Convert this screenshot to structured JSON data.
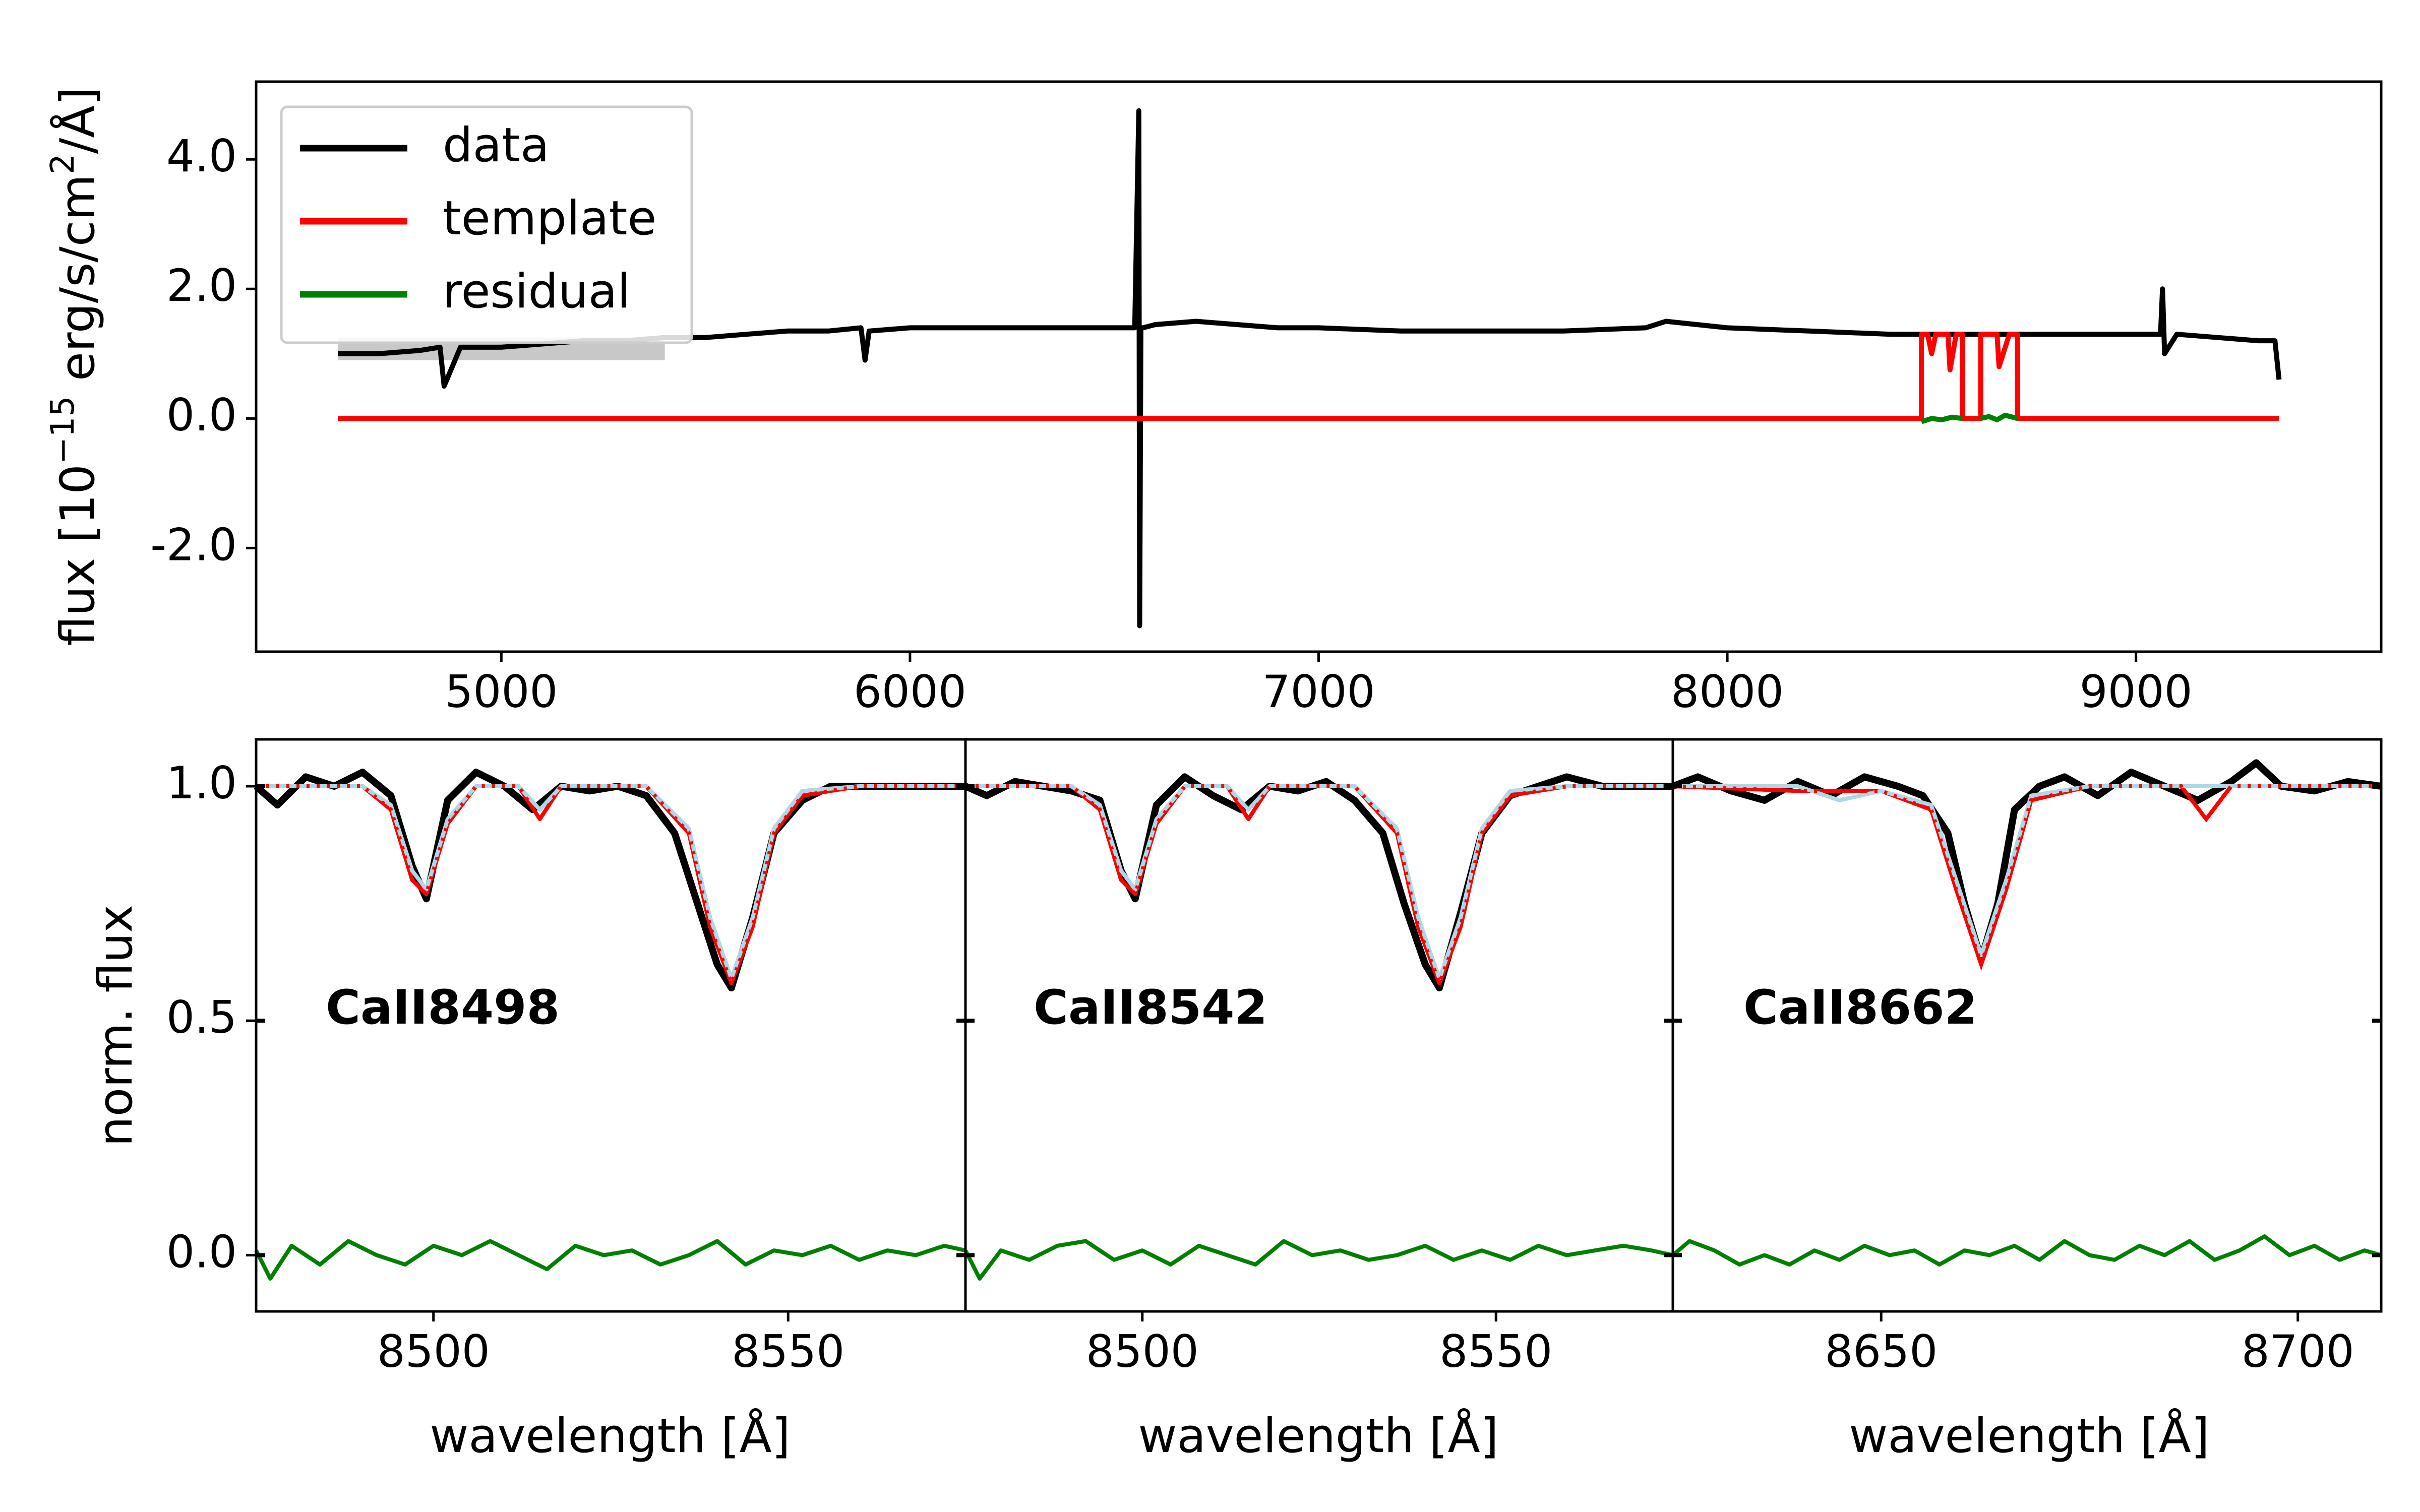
{
  "chart_data": [
    {
      "type": "line",
      "id": "full-spectrum",
      "ylabel": "flux [10^-15 erg/s/cm^2/Å]",
      "ylabel_parts": {
        "pre": "flux [10",
        "exp": "−15",
        "mid": " erg/s/cm",
        "exp2": "2",
        "post": "/Å]"
      },
      "xlim": [
        4400,
        9600
      ],
      "ylim": [
        -3.6,
        5.2
      ],
      "xticks": [
        5000,
        6000,
        7000,
        8000,
        9000
      ],
      "xtick_labels": [
        "5000",
        "6000",
        "7000",
        "8000",
        "9000"
      ],
      "yticks": [
        -2.0,
        0.0,
        2.0,
        4.0
      ],
      "ytick_labels": [
        "-2.0",
        "0.0",
        "2.0",
        "4.0"
      ],
      "legend": {
        "position": "top-left",
        "entries": [
          {
            "label": "data",
            "color": "#000000"
          },
          {
            "label": "template",
            "color": "#ff0000"
          },
          {
            "label": "residual",
            "color": "#008000"
          }
        ]
      },
      "series": [
        {
          "name": "data",
          "color": "#000000",
          "x": [
            4600,
            4700,
            4800,
            4850,
            4860,
            4900,
            5000,
            5100,
            5200,
            5300,
            5400,
            5500,
            5600,
            5700,
            5800,
            5880,
            5890,
            5900,
            6000,
            6100,
            6200,
            6300,
            6400,
            6500,
            6550,
            6560,
            6562,
            6565,
            6570,
            6600,
            6700,
            6800,
            6900,
            7000,
            7200,
            7400,
            7600,
            7800,
            7850,
            8000,
            8200,
            8400,
            8500,
            8600,
            8700,
            8800,
            8900,
            9000,
            9060,
            9065,
            9070,
            9100,
            9200,
            9300,
            9340,
            9350
          ],
          "y": [
            1.0,
            1.0,
            1.05,
            1.1,
            0.5,
            1.1,
            1.1,
            1.15,
            1.2,
            1.2,
            1.25,
            1.25,
            1.3,
            1.35,
            1.35,
            1.4,
            0.9,
            1.35,
            1.4,
            1.4,
            1.4,
            1.4,
            1.4,
            1.4,
            1.4,
            4.75,
            -3.2,
            1.4,
            1.4,
            1.45,
            1.5,
            1.45,
            1.4,
            1.4,
            1.35,
            1.35,
            1.35,
            1.4,
            1.5,
            1.4,
            1.35,
            1.3,
            1.3,
            1.3,
            1.3,
            1.3,
            1.3,
            1.3,
            1.3,
            2.0,
            1.0,
            1.3,
            1.25,
            1.2,
            1.2,
            0.6
          ],
          "shaded_region": {
            "x": [
              4600,
              5400
            ],
            "color": "#c8c8c8"
          }
        },
        {
          "name": "template",
          "color": "#ff0000",
          "x": [
            4600,
            8475,
            8475,
            8490,
            8500,
            8510,
            8540,
            8545,
            8560,
            8575,
            8575,
            8620,
            8620,
            8640,
            8660,
            8665,
            8690,
            8710,
            8710,
            9350
          ],
          "y": [
            0.0,
            0.0,
            1.3,
            1.3,
            1.0,
            1.3,
            1.3,
            0.75,
            1.3,
            1.3,
            0.0,
            0.0,
            1.3,
            1.3,
            1.3,
            0.8,
            1.3,
            1.3,
            0.0,
            0.0
          ]
        },
        {
          "name": "residual",
          "color": "#008000",
          "segments": [
            {
              "x": [
                8475,
                8500,
                8525,
                8550,
                8575
              ],
              "y": [
                -0.05,
                0.0,
                -0.02,
                0.02,
                0.0
              ]
            },
            {
              "x": [
                8620,
                8640,
                8660,
                8680,
                8710
              ],
              "y": [
                0.0,
                0.03,
                -0.02,
                0.05,
                0.0
              ]
            }
          ]
        }
      ]
    },
    {
      "type": "line",
      "id": "CaII8498",
      "label": "CaII8498",
      "xlabel": "wavelength [Å]",
      "ylabel": "norm. flux",
      "xlim": [
        8475,
        8575
      ],
      "ylim": [
        -0.12,
        1.1
      ],
      "xticks": [
        8500,
        8550
      ],
      "xtick_labels": [
        "8500",
        "8550"
      ],
      "yticks": [
        0.0,
        0.5,
        1.0
      ],
      "ytick_labels": [
        "0.0",
        "0.5",
        "1.0"
      ],
      "series": [
        {
          "name": "data",
          "color": "#000000",
          "x": [
            8475,
            8478,
            8482,
            8486,
            8490,
            8494,
            8497,
            8499,
            8502,
            8506,
            8510,
            8514,
            8518,
            8522,
            8526,
            8530,
            8534,
            8537,
            8540,
            8542,
            8545,
            8548,
            8552,
            8556,
            8560,
            8565,
            8570,
            8575
          ],
          "y": [
            1.0,
            0.96,
            1.02,
            1.0,
            1.03,
            0.98,
            0.83,
            0.76,
            0.97,
            1.03,
            1.0,
            0.95,
            1.0,
            0.99,
            1.0,
            0.98,
            0.9,
            0.76,
            0.62,
            0.57,
            0.72,
            0.9,
            0.97,
            1.0,
            1.0,
            1.0,
            1.0,
            1.0
          ]
        },
        {
          "name": "template",
          "color": "#ff0000",
          "x": [
            8475,
            8490,
            8494,
            8497,
            8499,
            8502,
            8506,
            8512,
            8515,
            8518,
            8530,
            8536,
            8539,
            8542,
            8545,
            8548,
            8552,
            8560,
            8575
          ],
          "y": [
            1.0,
            1.0,
            0.95,
            0.8,
            0.77,
            0.92,
            1.0,
            1.0,
            0.93,
            1.0,
            1.0,
            0.9,
            0.7,
            0.58,
            0.7,
            0.9,
            0.98,
            1.0,
            1.0
          ]
        },
        {
          "name": "fit",
          "color": "#add8e6",
          "x": [
            8475,
            8490,
            8494,
            8497,
            8499,
            8502,
            8506,
            8512,
            8515,
            8518,
            8530,
            8536,
            8539,
            8542,
            8545,
            8548,
            8552,
            8560,
            8575
          ],
          "y": [
            1.0,
            1.0,
            0.96,
            0.82,
            0.78,
            0.93,
            1.0,
            1.0,
            0.95,
            1.0,
            1.0,
            0.91,
            0.72,
            0.59,
            0.72,
            0.91,
            0.99,
            1.0,
            1.0
          ]
        },
        {
          "name": "residual",
          "color": "#008000",
          "x": [
            8475,
            8477,
            8480,
            8484,
            8488,
            8492,
            8496,
            8500,
            8504,
            8508,
            8512,
            8516,
            8520,
            8524,
            8528,
            8532,
            8536,
            8540,
            8544,
            8548,
            8552,
            8556,
            8560,
            8564,
            8568,
            8572,
            8575
          ],
          "y": [
            0.01,
            -0.05,
            0.02,
            -0.02,
            0.03,
            0.0,
            -0.02,
            0.02,
            0.0,
            0.03,
            0.0,
            -0.03,
            0.02,
            0.0,
            0.01,
            -0.02,
            0.0,
            0.03,
            -0.02,
            0.01,
            0.0,
            0.02,
            -0.01,
            0.01,
            0.0,
            0.02,
            0.01
          ]
        }
      ]
    },
    {
      "type": "line",
      "id": "CaII8542",
      "label": "CaII8542",
      "xlabel": "wavelength [Å]",
      "xlim": [
        8475,
        8575
      ],
      "ylim": [
        -0.12,
        1.1
      ],
      "xticks": [
        8500,
        8550
      ],
      "xtick_labels": [
        "8500",
        "8550"
      ],
      "series": [
        {
          "name": "data",
          "color": "#000000",
          "x": [
            8475,
            8478,
            8482,
            8486,
            8490,
            8494,
            8497,
            8499,
            8502,
            8506,
            8510,
            8514,
            8518,
            8522,
            8526,
            8530,
            8534,
            8537,
            8540,
            8542,
            8545,
            8548,
            8552,
            8556,
            8560,
            8565,
            8570,
            8575
          ],
          "y": [
            1.0,
            0.98,
            1.01,
            1.0,
            0.99,
            0.97,
            0.82,
            0.76,
            0.96,
            1.02,
            0.98,
            0.95,
            1.0,
            0.99,
            1.01,
            0.97,
            0.9,
            0.75,
            0.62,
            0.57,
            0.73,
            0.9,
            0.98,
            1.0,
            1.02,
            1.0,
            1.0,
            1.0
          ]
        },
        {
          "name": "template",
          "color": "#ff0000",
          "x": [
            8475,
            8490,
            8494,
            8497,
            8499,
            8502,
            8506,
            8512,
            8515,
            8518,
            8530,
            8536,
            8539,
            8542,
            8545,
            8548,
            8552,
            8560,
            8575
          ],
          "y": [
            1.0,
            1.0,
            0.95,
            0.8,
            0.77,
            0.92,
            1.0,
            1.0,
            0.93,
            1.0,
            1.0,
            0.9,
            0.7,
            0.58,
            0.7,
            0.9,
            0.98,
            1.0,
            1.0
          ]
        },
        {
          "name": "fit",
          "color": "#add8e6",
          "x": [
            8475,
            8490,
            8494,
            8497,
            8499,
            8502,
            8506,
            8512,
            8515,
            8518,
            8530,
            8536,
            8539,
            8542,
            8545,
            8548,
            8552,
            8560,
            8575
          ],
          "y": [
            1.0,
            1.0,
            0.96,
            0.82,
            0.78,
            0.93,
            1.0,
            1.0,
            0.95,
            1.0,
            1.0,
            0.91,
            0.72,
            0.59,
            0.72,
            0.91,
            0.99,
            1.0,
            1.0
          ]
        },
        {
          "name": "residual",
          "color": "#008000",
          "x": [
            8475,
            8477,
            8480,
            8484,
            8488,
            8492,
            8496,
            8500,
            8504,
            8508,
            8512,
            8516,
            8520,
            8524,
            8528,
            8532,
            8536,
            8540,
            8544,
            8548,
            8552,
            8556,
            8560,
            8564,
            8568,
            8572,
            8575
          ],
          "y": [
            0.01,
            -0.05,
            0.01,
            -0.01,
            0.02,
            0.03,
            -0.01,
            0.01,
            -0.02,
            0.02,
            0.0,
            -0.02,
            0.03,
            0.0,
            0.01,
            -0.01,
            0.0,
            0.02,
            -0.01,
            0.01,
            -0.01,
            0.02,
            0.0,
            0.01,
            0.02,
            0.01,
            0.0
          ]
        }
      ]
    },
    {
      "type": "line",
      "id": "CaII8662",
      "label": "CaII8662",
      "xlabel": "wavelength [Å]",
      "xlim": [
        8625,
        8710
      ],
      "ylim": [
        -0.12,
        1.1
      ],
      "xticks": [
        8650,
        8700
      ],
      "xtick_labels": [
        "8650",
        "8700"
      ],
      "series": [
        {
          "name": "data",
          "color": "#000000",
          "x": [
            8625,
            8628,
            8632,
            8636,
            8640,
            8644,
            8648,
            8652,
            8655,
            8658,
            8660,
            8662,
            8664,
            8666,
            8669,
            8672,
            8676,
            8680,
            8684,
            8688,
            8692,
            8695,
            8698,
            8702,
            8706,
            8710
          ],
          "y": [
            1.0,
            1.02,
            0.99,
            0.97,
            1.01,
            0.98,
            1.02,
            1.0,
            0.98,
            0.9,
            0.75,
            0.63,
            0.75,
            0.95,
            1.0,
            1.02,
            0.98,
            1.03,
            1.0,
            0.97,
            1.01,
            1.05,
            1.0,
            0.99,
            1.01,
            1.0
          ]
        },
        {
          "name": "template",
          "color": "#ff0000",
          "x": [
            8625,
            8640,
            8650,
            8656,
            8659,
            8662,
            8665,
            8668,
            8675,
            8686,
            8689,
            8692,
            8710
          ],
          "y": [
            1.0,
            0.99,
            0.99,
            0.95,
            0.78,
            0.62,
            0.78,
            0.97,
            1.0,
            1.0,
            0.93,
            1.0,
            1.0
          ]
        },
        {
          "name": "fit",
          "color": "#add8e6",
          "x": [
            8625,
            8640,
            8645,
            8650,
            8656,
            8659,
            8662,
            8665,
            8668,
            8675,
            8710
          ],
          "y": [
            1.0,
            1.0,
            0.97,
            0.99,
            0.96,
            0.8,
            0.64,
            0.8,
            0.98,
            1.0,
            1.0
          ]
        },
        {
          "name": "residual",
          "color": "#008000",
          "x": [
            8625,
            8627,
            8630,
            8633,
            8636,
            8639,
            8642,
            8645,
            8648,
            8651,
            8654,
            8657,
            8660,
            8663,
            8666,
            8669,
            8672,
            8675,
            8678,
            8681,
            8684,
            8687,
            8690,
            8693,
            8696,
            8699,
            8702,
            8705,
            8708,
            8710
          ],
          "y": [
            0.0,
            0.03,
            0.01,
            -0.02,
            0.0,
            -0.02,
            0.01,
            -0.01,
            0.02,
            0.0,
            0.01,
            -0.02,
            0.01,
            0.0,
            0.02,
            -0.01,
            0.03,
            0.0,
            -0.01,
            0.02,
            0.0,
            0.03,
            -0.01,
            0.01,
            0.04,
            0.0,
            0.02,
            -0.01,
            0.01,
            0.0
          ]
        }
      ]
    }
  ]
}
